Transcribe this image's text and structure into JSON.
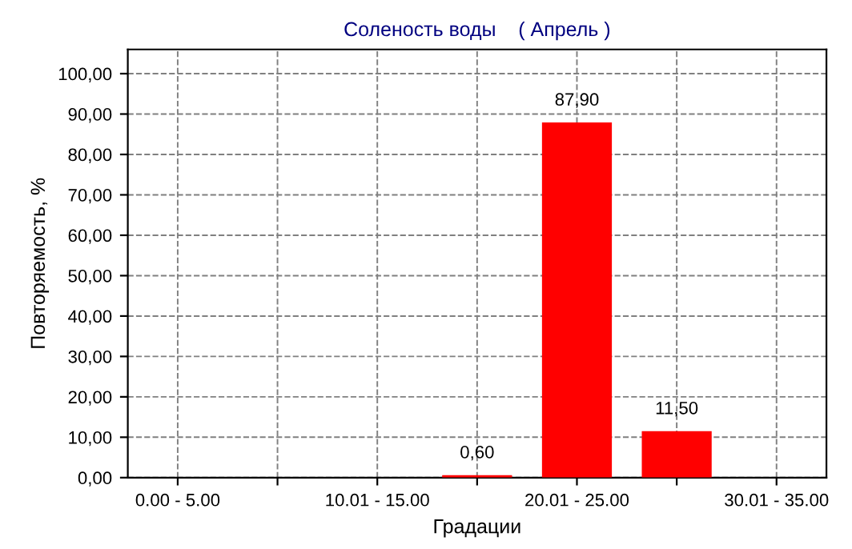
{
  "chart_data": {
    "type": "bar",
    "title": "Соленость воды    ( Апрель )",
    "xlabel": "Градации",
    "ylabel": "Повторяемость, %",
    "categories": [
      "0.00 - 5.00",
      null,
      "10.01 - 15.00",
      null,
      "20.01 - 25.00",
      null,
      "30.01 - 35.00"
    ],
    "values": [
      0,
      0,
      0,
      0.6,
      87.9,
      11.5,
      0
    ],
    "value_labels": [
      null,
      null,
      null,
      "0,60",
      "87,90",
      "11,50",
      null
    ],
    "color": "#ff0000",
    "ylim": [
      0,
      106
    ],
    "yticks": [
      {
        "value": 0,
        "label": "0,00"
      },
      {
        "value": 10,
        "label": "10,00"
      },
      {
        "value": 20,
        "label": "20,00"
      },
      {
        "value": 30,
        "label": "30,00"
      },
      {
        "value": 40,
        "label": "40,00"
      },
      {
        "value": 50,
        "label": "50,00"
      },
      {
        "value": 60,
        "label": "60,00"
      },
      {
        "value": 70,
        "label": "70,00"
      },
      {
        "value": 80,
        "label": "80,00"
      },
      {
        "value": 90,
        "label": "90,00"
      },
      {
        "value": 100,
        "label": "100,00"
      }
    ],
    "grid": true
  }
}
